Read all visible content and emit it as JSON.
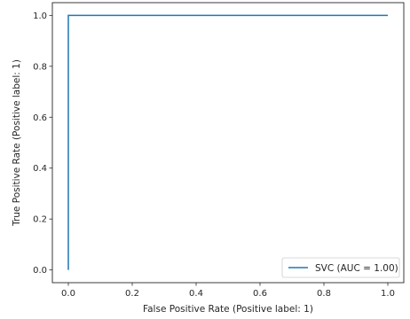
{
  "chart_data": {
    "type": "line",
    "title": "",
    "xlabel": "False Positive Rate (Positive label: 1)",
    "ylabel": "True Positive Rate (Positive label: 1)",
    "xlim": [
      -0.05,
      1.05
    ],
    "ylim": [
      -0.05,
      1.05
    ],
    "xticks": [
      0.0,
      0.2,
      0.4,
      0.6,
      0.8,
      1.0
    ],
    "yticks": [
      0.0,
      0.2,
      0.4,
      0.6,
      0.8,
      1.0
    ],
    "xtick_labels": [
      "0.0",
      "0.2",
      "0.4",
      "0.6",
      "0.8",
      "1.0"
    ],
    "ytick_labels": [
      "0.0",
      "0.2",
      "0.4",
      "0.6",
      "0.8",
      "1.0"
    ],
    "grid": false,
    "legend_position": "bottom-right",
    "series": [
      {
        "name": "SVC (AUC = 1.00)",
        "color": "#1f77b4",
        "x": [
          0.0,
          0.0,
          1.0
        ],
        "y": [
          0.0,
          1.0,
          1.0
        ]
      }
    ]
  }
}
